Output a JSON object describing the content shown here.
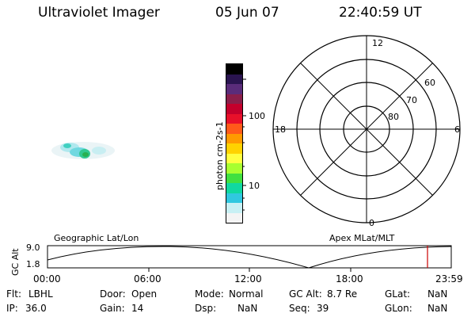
{
  "header": {
    "title": "Ultraviolet Imager",
    "date": "05 Jun 07",
    "time": "22:40:59 UT"
  },
  "colorbar": {
    "label": "photon cm-2s-1",
    "ticks": [
      "100",
      "10"
    ],
    "colors": [
      "#000000",
      "#2a1450",
      "#5a2c7a",
      "#8a1f4a",
      "#c4002c",
      "#e8102a",
      "#ff5a1a",
      "#ff9a00",
      "#ffd200",
      "#ffff40",
      "#a8ff30",
      "#40e040",
      "#10d8a0",
      "#30c8e0",
      "#c8f0f4",
      "#f4f4f4"
    ]
  },
  "polar": {
    "mlt_labels": {
      "top": "12",
      "left": "18",
      "right": "6",
      "bottom": "0"
    },
    "lat_labels": [
      "60",
      "70",
      "80"
    ]
  },
  "orbit": {
    "left_title": "Geographic Lat/Lon",
    "right_title": "Apex MLat/MLT",
    "ylabel": "GC Alt",
    "y_ticks": [
      "9.0",
      "1.8"
    ],
    "x_ticks": [
      "00:00",
      "06:00",
      "12:00",
      "18:00",
      "23:59"
    ],
    "current_marker_color": "#cc0000"
  },
  "info": {
    "row1": [
      {
        "label": "Flt:",
        "value": "LBHL"
      },
      {
        "label": "Door:",
        "value": "Open"
      },
      {
        "label": "Mode:",
        "value": "Normal"
      },
      {
        "label": "GC Alt:",
        "value": "8.7 Re"
      },
      {
        "label": "GLat:",
        "value": "NaN"
      }
    ],
    "row2": [
      {
        "label": "IP:",
        "value": "36.0"
      },
      {
        "label": "Gain:",
        "value": "14"
      },
      {
        "label": "Dsp:",
        "value": "NaN"
      },
      {
        "label": "Seq:",
        "value": "39"
      },
      {
        "label": "GLon:",
        "value": "NaN"
      }
    ]
  }
}
